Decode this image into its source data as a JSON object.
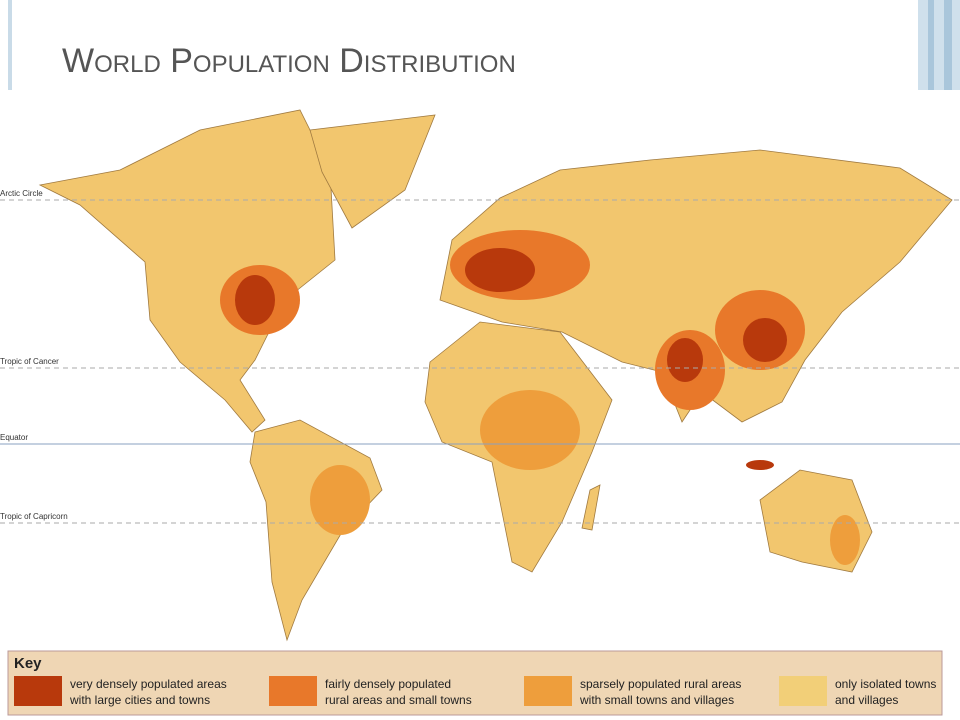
{
  "title": "World Population Distribution",
  "lines": [
    {
      "label": "Arctic Circle"
    },
    {
      "label": "Tropic of Cancer"
    },
    {
      "label": "Equator"
    },
    {
      "label": "Tropic of Capricorn"
    }
  ],
  "key": {
    "title": "Key",
    "items": [
      {
        "color": "#b8390c",
        "lines": [
          "very densely populated areas",
          "with large cities and towns"
        ]
      },
      {
        "color": "#e8782a",
        "lines": [
          "fairly densely populated",
          "rural areas and small towns"
        ]
      },
      {
        "color": "#ee9e3c",
        "lines": [
          "sparsely populated rural areas",
          "with small towns and villages"
        ]
      },
      {
        "color": "#f2cf78",
        "lines": [
          "only isolated towns",
          "and villages"
        ]
      }
    ]
  }
}
